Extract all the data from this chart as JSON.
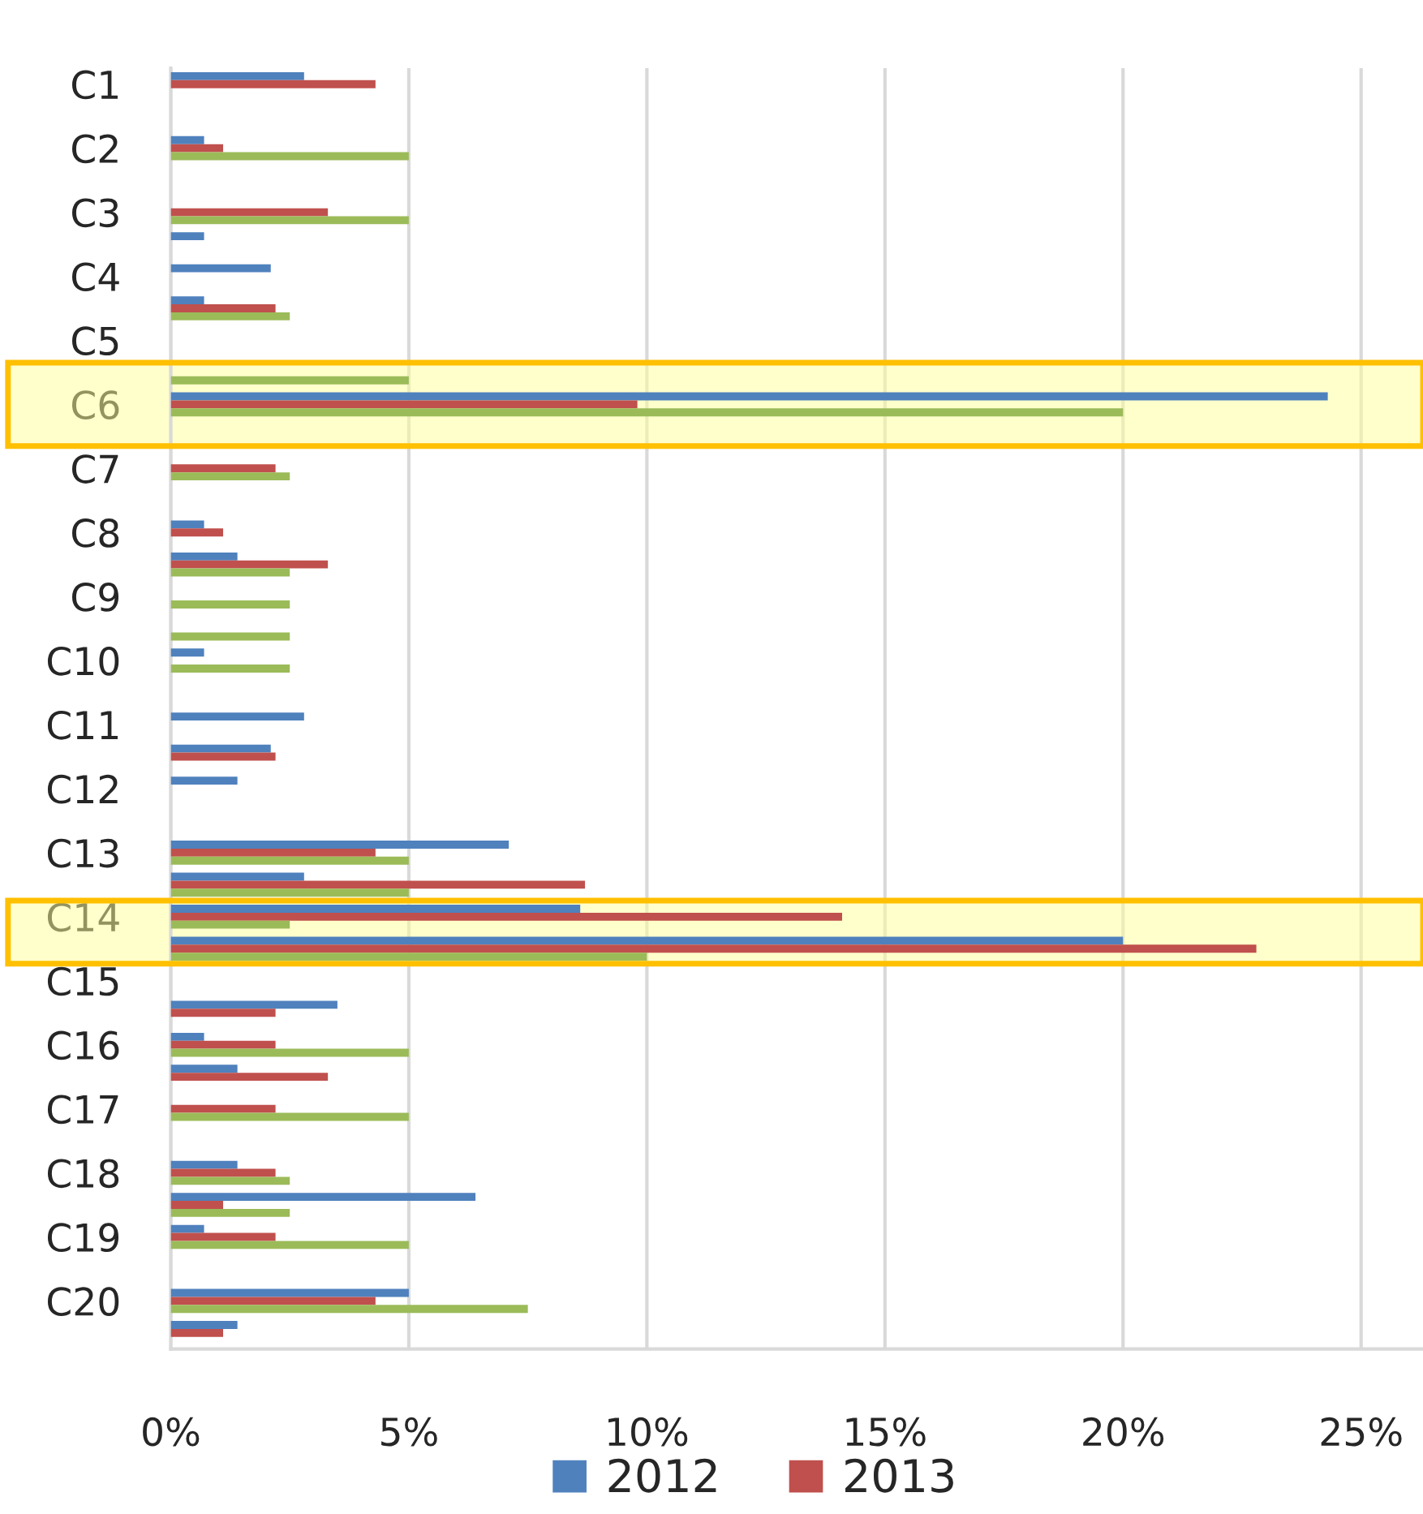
{
  "chart_data": {
    "type": "bar",
    "orientation": "horizontal",
    "categories": [
      "C1",
      null,
      "C2",
      null,
      "C3",
      null,
      "C4",
      null,
      "C5",
      null,
      "C6",
      null,
      "C7",
      null,
      "C8",
      null,
      "C9",
      null,
      "C10",
      null,
      "C11",
      null,
      "C12",
      null,
      "C13",
      null,
      "C14",
      null,
      "C15",
      null,
      "C16",
      null,
      "C17",
      null,
      "C18",
      null,
      "C19",
      null,
      "C20",
      null
    ],
    "series": [
      {
        "name": "2012",
        "color": "#4f81bd",
        "values": [
          2.8,
          null,
          0.7,
          null,
          null,
          0.7,
          2.1,
          0.7,
          null,
          null,
          24.3,
          null,
          null,
          null,
          0.7,
          1.4,
          null,
          null,
          0.7,
          null,
          2.8,
          2.1,
          1.4,
          null,
          7.1,
          2.8,
          8.6,
          20,
          null,
          3.5,
          0.7,
          1.4,
          null,
          null,
          1.4,
          6.4,
          0.7,
          null,
          5,
          1.4
        ]
      },
      {
        "name": "2013",
        "color": "#c0504d",
        "values": [
          4.3,
          null,
          1.1,
          null,
          3.3,
          null,
          null,
          2.2,
          null,
          null,
          9.8,
          null,
          2.2,
          null,
          1.1,
          3.3,
          null,
          null,
          null,
          null,
          null,
          2.2,
          null,
          null,
          4.3,
          8.7,
          14.1,
          22.8,
          null,
          2.2,
          2.2,
          3.3,
          2.2,
          null,
          2.2,
          1.1,
          2.2,
          null,
          4.3,
          1.1
        ]
      },
      {
        "color": "#9bbb59",
        "values": [
          null,
          null,
          5,
          null,
          5,
          null,
          null,
          2.5,
          null,
          5,
          20,
          null,
          2.5,
          null,
          null,
          2.5,
          2.5,
          2.5,
          2.5,
          null,
          null,
          null,
          null,
          null,
          5,
          5,
          2.5,
          10,
          null,
          null,
          5,
          null,
          5,
          null,
          2.5,
          2.5,
          5,
          null,
          7.5,
          null
        ]
      }
    ],
    "xlim": [
      0,
      26.3
    ],
    "xticks": [
      {
        "value": 0,
        "label": "0%"
      },
      {
        "value": 5,
        "label": "5%"
      },
      {
        "value": 10,
        "label": "10%"
      },
      {
        "value": 15,
        "label": "15%"
      },
      {
        "value": 20,
        "label": "20%"
      },
      {
        "value": 25,
        "label": "25%"
      }
    ],
    "grid": "x",
    "legend": "bottom"
  }
}
